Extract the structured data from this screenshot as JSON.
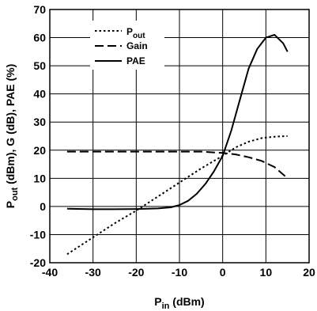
{
  "chart_data": {
    "type": "line",
    "xlabel": {
      "main": "P",
      "sub": "in",
      "rest": " (dBm)"
    },
    "ylabel": {
      "main": "P",
      "sub": "out",
      "rest": " (dBm), G (dB), PAE (%)"
    },
    "xlim": [
      -40,
      20
    ],
    "ylim": [
      -20,
      70
    ],
    "xticks": [
      "-40",
      "-30",
      "-20",
      "-10",
      "0",
      "10",
      "20"
    ],
    "yticks": [
      "-20",
      "-10",
      "0",
      "10",
      "20",
      "30",
      "40",
      "50",
      "60",
      "70"
    ],
    "grid": true,
    "legend_position": "top-left",
    "series": [
      {
        "name": "Pout",
        "legend": {
          "main": "P",
          "sub": "out"
        },
        "style": "dotted",
        "x": [
          -36,
          -30,
          -25,
          -20,
          -15,
          -10,
          -5,
          0,
          3,
          6,
          9,
          12,
          15
        ],
        "y": [
          -17,
          -11,
          -6,
          -1.5,
          3.5,
          8.5,
          13.5,
          18,
          21,
          23,
          24.3,
          24.8,
          25
        ]
      },
      {
        "name": "Gain",
        "legend": {
          "main": "Gain",
          "sub": ""
        },
        "style": "dashed",
        "x": [
          -36,
          -30,
          -20,
          -10,
          -5,
          0,
          3,
          6,
          9,
          12,
          15
        ],
        "y": [
          19.5,
          19.5,
          19.5,
          19.5,
          19.5,
          19,
          18.5,
          17.5,
          16.2,
          14,
          10
        ]
      },
      {
        "name": "PAE",
        "legend": {
          "main": "PAE",
          "sub": ""
        },
        "style": "solid",
        "x": [
          -36,
          -30,
          -25,
          -20,
          -15,
          -12,
          -10,
          -8,
          -6,
          -4,
          -2,
          0,
          2,
          4,
          6,
          8,
          10,
          12,
          14,
          15
        ],
        "y": [
          -0.8,
          -1,
          -1,
          -0.9,
          -0.7,
          -0.3,
          0.5,
          2,
          4.5,
          8,
          12.5,
          18,
          27,
          38,
          49,
          56,
          60,
          61,
          58,
          55
        ]
      }
    ]
  }
}
